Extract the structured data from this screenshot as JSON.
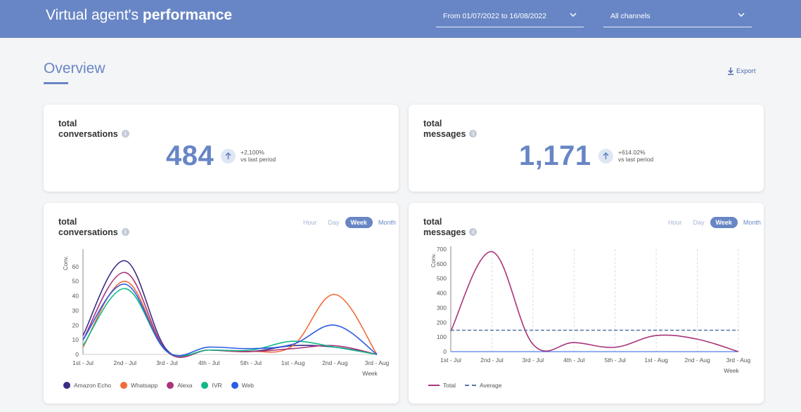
{
  "header": {
    "title_light": "Virtual agent's ",
    "title_bold": "performance",
    "date_filter": "From 01/07/2022 to 16/08/2022",
    "channel_filter": "All channels"
  },
  "overview": {
    "title": "Overview",
    "export_label": "Export"
  },
  "kpis": {
    "conversations": {
      "title_line1": "total",
      "title_line2": "conversations",
      "value": "484",
      "trend_pct": "+2,100%",
      "trend_label": "vs last period"
    },
    "messages": {
      "title_line1": "total",
      "title_line2": "messages",
      "value": "1,171",
      "trend_pct": "+614.02%",
      "trend_label": "vs last period"
    }
  },
  "period_options": {
    "hour": "Hour",
    "day": "Day",
    "week": "Week",
    "month": "Month"
  },
  "conv_card": {
    "title_line1": "total",
    "title_line2": "conversations"
  },
  "msg_card": {
    "title_line1": "total",
    "title_line2": "messages"
  },
  "colors": {
    "brand": "#6886c5",
    "amazon_echo": "#3b2c85",
    "whatsapp": "#f26b3a",
    "alexa": "#a8347a",
    "ivr": "#13b887",
    "web": "#2b5ce6",
    "total": "#a8347a",
    "average": "#5773a8"
  },
  "chart_data": [
    {
      "type": "line",
      "ylabel": "Conv.",
      "xlabel": "Week",
      "ylim": [
        0,
        70
      ],
      "yticks": [
        0,
        10,
        20,
        30,
        40,
        50,
        60
      ],
      "categories": [
        "1st - Jul",
        "2nd - Jul",
        "3rd - Jul",
        "4th - Jul",
        "5th - Jul",
        "1st - Aug",
        "2nd - Aug",
        "3rd - Aug"
      ],
      "series": [
        {
          "name": "Amazon Echo",
          "color": "#3b2c85",
          "values": [
            13,
            64,
            3,
            3,
            2,
            6,
            5,
            0
          ]
        },
        {
          "name": "Whatsapp",
          "color": "#f26b3a",
          "values": [
            5,
            50,
            2,
            3,
            2,
            6,
            41,
            0
          ]
        },
        {
          "name": "Alexa",
          "color": "#a8347a",
          "values": [
            10,
            56,
            2,
            3,
            2,
            4,
            6,
            0
          ]
        },
        {
          "name": "IVR",
          "color": "#13b887",
          "values": [
            6,
            45,
            2,
            3,
            3,
            9,
            5,
            0
          ]
        },
        {
          "name": "Web",
          "color": "#2b5ce6",
          "values": [
            10,
            48,
            2,
            5,
            4,
            7,
            20,
            0
          ]
        }
      ],
      "legend": "bottom"
    },
    {
      "type": "line",
      "ylabel": "Conv.",
      "xlabel": "Week",
      "ylim": [
        0,
        700
      ],
      "yticks": [
        0,
        100,
        200,
        300,
        400,
        500,
        600,
        700
      ],
      "categories": [
        "1st - Jul",
        "2nd - Jul",
        "3rd - Jul",
        "4th - Jul",
        "5th - Jul",
        "1st - Aug",
        "2nd - Aug",
        "3rd - Aug"
      ],
      "series": [
        {
          "name": "Total",
          "color": "#a8347a",
          "values": [
            140,
            683,
            50,
            62,
            30,
            110,
            85,
            0
          ]
        },
        {
          "name": "Average",
          "color": "#5773a8",
          "dashed": true,
          "values": [
            146,
            146,
            146,
            146,
            146,
            146,
            146,
            146
          ]
        }
      ],
      "legend": "bottom"
    }
  ]
}
